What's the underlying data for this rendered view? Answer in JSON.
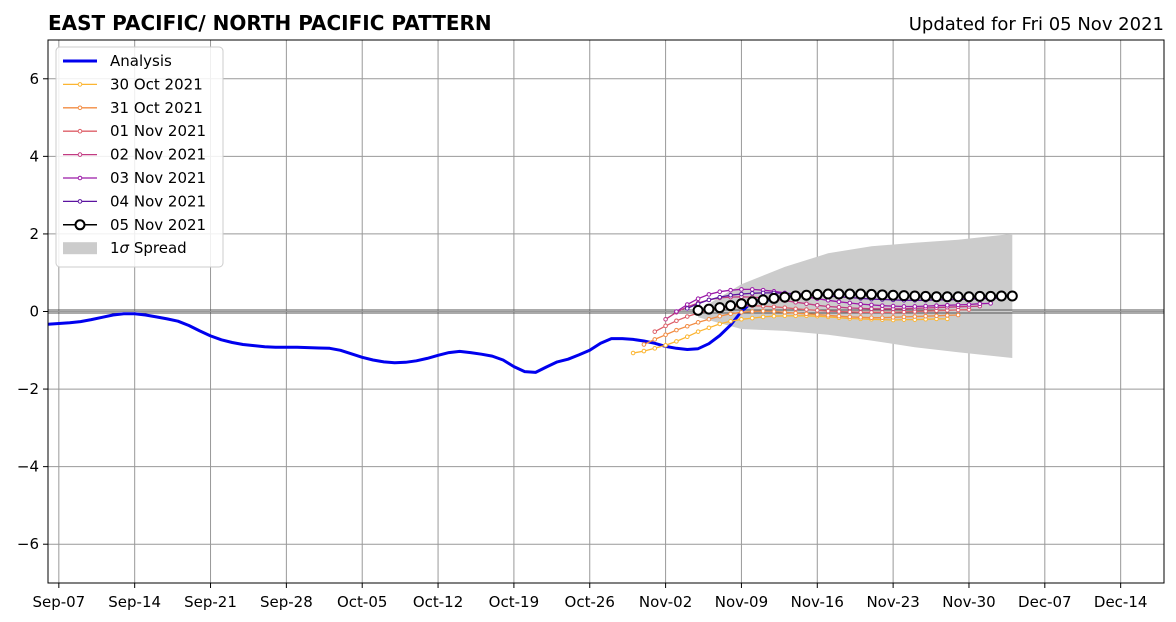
{
  "chart_data": {
    "type": "line",
    "title": "EAST PACIFIC/ NORTH PACIFIC PATTERN",
    "subtitle": "Updated for Fri 05 Nov 2021",
    "xlabel": "",
    "ylabel": "",
    "x_domain": [
      "2021-09-06",
      "2021-12-18"
    ],
    "ylim": [
      -7,
      7
    ],
    "y_ticks": [
      -6,
      -4,
      -2,
      0,
      2,
      4,
      6
    ],
    "y_tick_labels": [
      "−6",
      "−4",
      "−2",
      "0",
      "2",
      "4",
      "6"
    ],
    "x_ticks": [
      "2021-09-07",
      "2021-09-14",
      "2021-09-21",
      "2021-09-28",
      "2021-10-05",
      "2021-10-12",
      "2021-10-19",
      "2021-10-26",
      "2021-11-02",
      "2021-11-09",
      "2021-11-16",
      "2021-11-23",
      "2021-11-30",
      "2021-12-07",
      "2021-12-14"
    ],
    "x_tick_labels": [
      "Sep-07",
      "Sep-14",
      "Sep-21",
      "Sep-28",
      "Oct-05",
      "Oct-12",
      "Oct-19",
      "Oct-26",
      "Nov-02",
      "Nov-09",
      "Nov-16",
      "Nov-23",
      "Nov-30",
      "Dec-07",
      "Dec-14"
    ],
    "grid": true,
    "legend_position": "top-left",
    "analysis": {
      "name": "Analysis",
      "color": "#0000ee",
      "start": "2021-09-06",
      "values": [
        -0.33,
        -0.31,
        -0.29,
        -0.26,
        -0.21,
        -0.15,
        -0.09,
        -0.06,
        -0.06,
        -0.09,
        -0.14,
        -0.19,
        -0.25,
        -0.36,
        -0.5,
        -0.63,
        -0.73,
        -0.8,
        -0.85,
        -0.88,
        -0.91,
        -0.92,
        -0.92,
        -0.92,
        -0.93,
        -0.94,
        -0.95,
        -1.0,
        -1.09,
        -1.18,
        -1.25,
        -1.3,
        -1.32,
        -1.31,
        -1.27,
        -1.21,
        -1.13,
        -1.06,
        -1.03,
        -1.06,
        -1.1,
        -1.15,
        -1.25,
        -1.42,
        -1.55,
        -1.57,
        -1.43,
        -1.3,
        -1.23,
        -1.12,
        -1.0,
        -0.82,
        -0.7,
        -0.7,
        -0.72,
        -0.76,
        -0.82,
        -0.9,
        -0.95,
        -0.98,
        -0.96,
        -0.83,
        -0.62,
        -0.35,
        0.0,
        0.25,
        0.3,
        0.3
      ]
    },
    "forecasts": [
      {
        "name": "30 Oct 2021",
        "color": "#fcb531",
        "start": "2021-10-30",
        "values": [
          -1.07,
          -1.02,
          -0.95,
          -0.87,
          -0.77,
          -0.65,
          -0.52,
          -0.42,
          -0.32,
          -0.25,
          -0.2,
          -0.17,
          -0.14,
          -0.12,
          -0.11,
          -0.11,
          -0.11,
          -0.12,
          -0.14,
          -0.16,
          -0.18,
          -0.19,
          -0.2,
          -0.21,
          -0.22,
          -0.21,
          -0.21,
          -0.2,
          -0.19,
          -0.19
        ]
      },
      {
        "name": "31 Oct 2021",
        "color": "#f28c43",
        "start": "2021-10-31",
        "values": [
          -0.85,
          -0.72,
          -0.6,
          -0.48,
          -0.38,
          -0.28,
          -0.2,
          -0.12,
          -0.06,
          -0.02,
          0.0,
          0.01,
          0.0,
          -0.02,
          -0.04,
          -0.06,
          -0.08,
          -0.1,
          -0.12,
          -0.14,
          -0.15,
          -0.16,
          -0.16,
          -0.15,
          -0.14,
          -0.13,
          -0.12,
          -0.11,
          -0.1,
          -0.09
        ]
      },
      {
        "name": "01 Nov 2021",
        "color": "#de5f68",
        "start": "2021-11-01",
        "values": [
          -0.52,
          -0.37,
          -0.24,
          -0.13,
          -0.04,
          0.03,
          0.08,
          0.12,
          0.14,
          0.15,
          0.14,
          0.12,
          0.1,
          0.07,
          0.05,
          0.03,
          0.01,
          0.0,
          -0.01,
          -0.02,
          -0.02,
          -0.02,
          -0.02,
          -0.01,
          0.0,
          0.01,
          0.02,
          0.03,
          0.04,
          0.05
        ]
      },
      {
        "name": "02 Nov 2021",
        "color": "#c23b82",
        "start": "2021-11-02",
        "values": [
          -0.2,
          -0.02,
          0.12,
          0.22,
          0.3,
          0.35,
          0.37,
          0.38,
          0.37,
          0.35,
          0.32,
          0.28,
          0.24,
          0.2,
          0.16,
          0.13,
          0.11,
          0.09,
          0.08,
          0.07,
          0.07,
          0.07,
          0.07,
          0.08,
          0.09,
          0.1,
          0.11,
          0.12,
          0.13,
          0.14
        ]
      },
      {
        "name": "03 Nov 2021",
        "color": "#9b19a8",
        "start": "2021-11-03",
        "values": [
          0.0,
          0.18,
          0.33,
          0.44,
          0.51,
          0.55,
          0.57,
          0.57,
          0.55,
          0.52,
          0.48,
          0.43,
          0.38,
          0.33,
          0.29,
          0.25,
          0.22,
          0.19,
          0.17,
          0.15,
          0.14,
          0.13,
          0.13,
          0.14,
          0.15,
          0.16,
          0.17,
          0.18,
          0.2,
          0.21
        ]
      },
      {
        "name": "04 Nov 2021",
        "color": "#5b13a0",
        "start": "2021-11-04",
        "values": [
          0.08,
          0.2,
          0.3,
          0.37,
          0.42,
          0.45,
          0.47,
          0.48,
          0.48,
          0.47,
          0.46,
          0.44,
          0.42,
          0.4,
          0.38,
          0.36,
          0.34,
          0.32,
          0.31,
          0.3,
          0.29,
          0.29,
          0.29,
          0.3,
          0.3,
          0.31,
          0.32,
          0.33,
          0.34,
          0.35
        ]
      },
      {
        "name": "05 Nov 2021",
        "color": "#000000",
        "markerfill": "#ffffff",
        "start": "2021-11-05",
        "values": [
          0.03,
          0.06,
          0.1,
          0.15,
          0.2,
          0.25,
          0.3,
          0.34,
          0.37,
          0.4,
          0.42,
          0.44,
          0.45,
          0.45,
          0.45,
          0.45,
          0.44,
          0.43,
          0.42,
          0.41,
          0.4,
          0.39,
          0.38,
          0.38,
          0.38,
          0.38,
          0.39,
          0.39,
          0.4,
          0.4
        ]
      }
    ],
    "spread": {
      "name": "1σ Spread",
      "color": "#cccccc",
      "dates": [
        "2021-11-05",
        "2021-11-09",
        "2021-11-13",
        "2021-11-17",
        "2021-11-21",
        "2021-11-25",
        "2021-11-29",
        "2021-12-04"
      ],
      "upper": [
        0.03,
        0.7,
        1.15,
        1.5,
        1.68,
        1.77,
        1.85,
        2.0
      ],
      "lower": [
        -0.15,
        -0.45,
        -0.5,
        -0.6,
        -0.75,
        -0.92,
        -1.05,
        -1.2
      ]
    },
    "legend_labels": {
      "analysis": "Analysis",
      "spread_prefix": "1",
      "spread_sigma": "σ",
      "spread_suffix": " Spread"
    }
  }
}
